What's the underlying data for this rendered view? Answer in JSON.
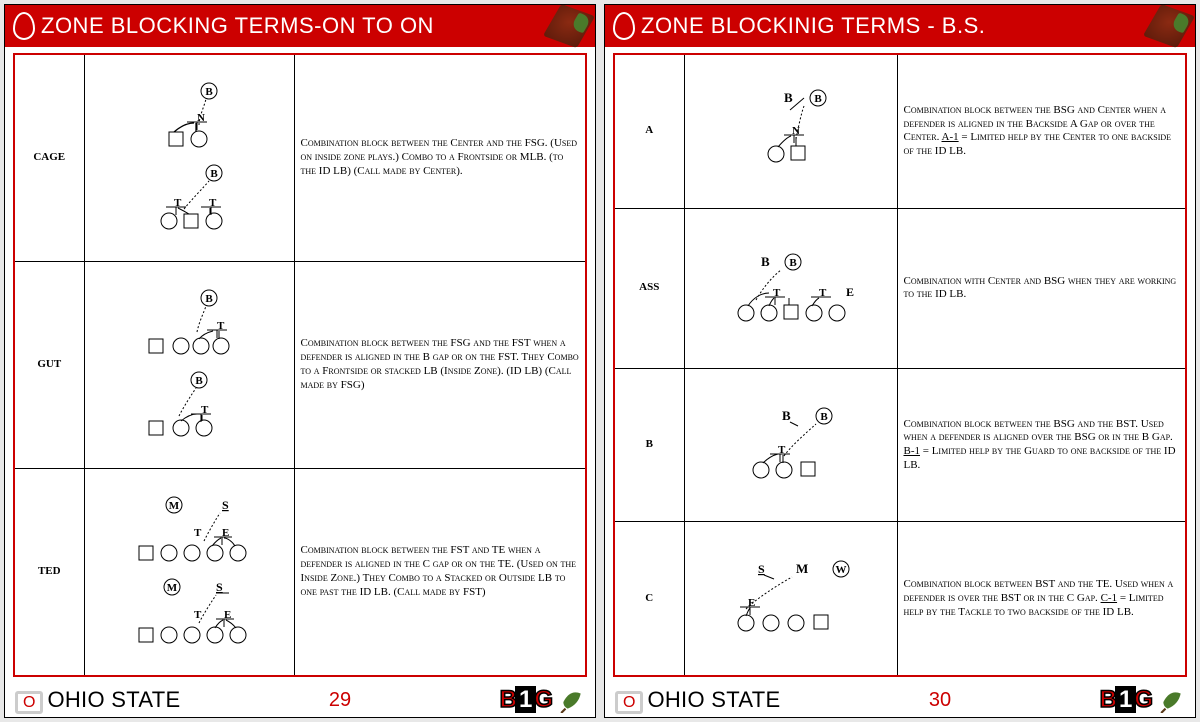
{
  "colors": {
    "red": "#c00",
    "black": "#000",
    "white": "#fff"
  },
  "pages": [
    {
      "title": "ZONE BLOCKING TERMS-ON TO ON",
      "page_num": "29",
      "footer_team": "OHIO STATE",
      "footer_conf": "B1G",
      "rows": [
        {
          "term": "CAGE",
          "desc": "Combination block between the Center and the FSG. (Used on inside zone plays.) Combo to a Frontside or MLB. (to the ID LB) (Call made by Center)."
        },
        {
          "term": "GUT",
          "desc": "Combination block between the FSG and the FST when a defender is aligned in the B gap or on the FST. They Combo to a Frontside or stacked LB (Inside Zone). (ID LB) (Call made by FSG)"
        },
        {
          "term": "TED",
          "desc": "Combination block between the FST and TE when a defender is aligned in the C gap or on the TE. (Used on the Inside Zone.) They Combo to a Stacked or Outside LB to one past the ID LB. (Call made by FST)"
        }
      ]
    },
    {
      "title": "ZONE BLOCKINIG TERMS - B.S.",
      "page_num": "30",
      "footer_team": "OHIO STATE",
      "footer_conf": "B1G",
      "rows": [
        {
          "term": "A",
          "desc": "Combination block between the BSG and Center when a defender is aligned in the Backside A Gap or over the Center. <u>A-1</u> = Limited help by the Center to one backside of the ID LB."
        },
        {
          "term": "ASS",
          "desc": "Combination with Center and BSG when they are working to the ID LB."
        },
        {
          "term": "B",
          "desc": "Combination block between the BSG and the BST. Used when a defender is aligned over the BSG or in the B Gap. <u>B-1</u> = Limited help by the Guard to one backside of the ID LB."
        },
        {
          "term": "C",
          "desc": "Combination block between BST and the TE. Used when a defender is over the BST or in the C Gap. <u>C-1</u> = Limited help by the Tackle to two backside of the ID LB."
        }
      ]
    }
  ]
}
